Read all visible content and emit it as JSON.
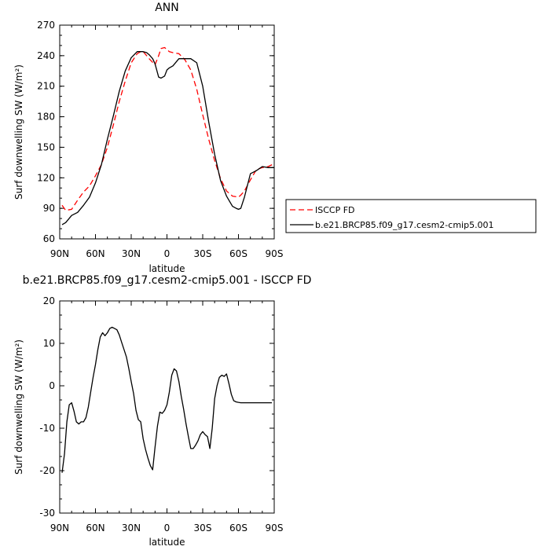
{
  "chart_data": [
    {
      "type": "line",
      "title": "ANN",
      "xlabel": "latitude",
      "ylabel": "Surf downwelling SW (W/m²)",
      "xlim": [
        90,
        -90
      ],
      "ylim": [
        60,
        270
      ],
      "xticks": [
        {
          "value": 90,
          "label": "90N"
        },
        {
          "value": 60,
          "label": "60N"
        },
        {
          "value": 30,
          "label": "30N"
        },
        {
          "value": 0,
          "label": "0"
        },
        {
          "value": -30,
          "label": "30S"
        },
        {
          "value": -60,
          "label": "60S"
        },
        {
          "value": -90,
          "label": "90S"
        }
      ],
      "yticks": [
        60,
        90,
        120,
        150,
        180,
        210,
        240,
        270
      ],
      "legend": {
        "position": "right",
        "entries": [
          {
            "label": "ISCCP FD",
            "color": "#ff0000",
            "dash": true
          },
          {
            "label": "b.e21.BRCP85.f09_g17.cesm2-cmip5.001",
            "color": "#000000",
            "dash": false
          }
        ]
      },
      "series": [
        {
          "name": "ISCCP FD",
          "color": "#ff0000",
          "dash": true,
          "x": [
            88,
            85,
            80,
            75,
            70,
            65,
            60,
            55,
            50,
            45,
            40,
            35,
            30,
            25,
            22,
            20,
            17,
            15,
            10,
            7,
            5,
            2,
            0,
            -2,
            -5,
            -10,
            -15,
            -20,
            -25,
            -30,
            -35,
            -40,
            -45,
            -50,
            -55,
            -60,
            -62,
            -65,
            -70,
            -75,
            -80,
            -85,
            -90
          ],
          "y": [
            93,
            88,
            89,
            98,
            106,
            112,
            122,
            133,
            150,
            172,
            195,
            215,
            233,
            242,
            244,
            244,
            240,
            237,
            231,
            240,
            247,
            248,
            246,
            244,
            243,
            242,
            236,
            226,
            207,
            182,
            158,
            137,
            119,
            107,
            102,
            101,
            103,
            107,
            118,
            128,
            130,
            131,
            134
          ]
        },
        {
          "name": "b.e21.BRCP85.f09_g17.cesm2-cmip5.001",
          "color": "#000000",
          "dash": false,
          "x": [
            88,
            85,
            80,
            75,
            70,
            65,
            60,
            55,
            50,
            45,
            40,
            35,
            30,
            25,
            22,
            20,
            17,
            15,
            12,
            10,
            7,
            5,
            2,
            0,
            -2,
            -5,
            -10,
            -15,
            -20,
            -25,
            -30,
            -35,
            -40,
            -45,
            -50,
            -55,
            -58,
            -60,
            -62,
            -65,
            -70,
            -75,
            -80,
            -85,
            -90
          ],
          "y": [
            74,
            76,
            83,
            86,
            93,
            101,
            115,
            133,
            158,
            181,
            205,
            225,
            238,
            244,
            244,
            244,
            243,
            241,
            237,
            232,
            219,
            218,
            220,
            226,
            228,
            230,
            237,
            237,
            237,
            233,
            210,
            175,
            143,
            117,
            102,
            92,
            90,
            89,
            90,
            101,
            124,
            127,
            131,
            130,
            130
          ]
        }
      ]
    },
    {
      "type": "line",
      "title": "b.e21.BRCP85.f09_g17.cesm2-cmip5.001 - ISCCP FD",
      "xlabel": "latitude",
      "ylabel": "Surf downwelling SW (W/m²)",
      "xlim": [
        90,
        -90
      ],
      "ylim": [
        -30,
        20
      ],
      "xticks": [
        {
          "value": 90,
          "label": "90N"
        },
        {
          "value": 60,
          "label": "60N"
        },
        {
          "value": 30,
          "label": "30N"
        },
        {
          "value": 0,
          "label": "0"
        },
        {
          "value": -30,
          "label": "30S"
        },
        {
          "value": -60,
          "label": "60S"
        },
        {
          "value": -90,
          "label": "90S"
        }
      ],
      "yticks": [
        -30,
        -20,
        -10,
        0,
        10,
        20
      ],
      "series": [
        {
          "color": "#000000",
          "dash": false,
          "x": [
            88,
            86,
            84,
            82,
            80,
            78,
            76,
            74,
            72,
            70,
            68,
            66,
            64,
            62,
            60,
            58,
            56,
            54,
            52,
            50,
            48,
            46,
            44,
            42,
            40,
            38,
            36,
            34,
            32,
            30,
            28,
            26,
            24,
            22,
            20,
            18,
            16,
            14,
            12,
            10,
            8,
            6,
            4,
            2,
            0,
            -2,
            -4,
            -6,
            -8,
            -10,
            -12,
            -14,
            -16,
            -18,
            -20,
            -22,
            -24,
            -26,
            -28,
            -30,
            -32,
            -34,
            -36,
            -38,
            -40,
            -42,
            -44,
            -46,
            -48,
            -50,
            -52,
            -54,
            -56,
            -58,
            -60,
            -62,
            -64,
            -66,
            -68,
            -70,
            -72,
            -74,
            -76,
            -78,
            -80,
            -82,
            -84,
            -86,
            -88
          ],
          "y": [
            -20.5,
            -16,
            -8.5,
            -4.5,
            -4,
            -6,
            -8.5,
            -9,
            -8.5,
            -8.5,
            -7.5,
            -5,
            -1.5,
            2,
            5,
            8.5,
            11.5,
            12.5,
            11.8,
            12.5,
            13.5,
            13.8,
            13.5,
            13.2,
            12,
            10.2,
            8.5,
            6.8,
            4,
            1,
            -1.8,
            -5.8,
            -8,
            -8.5,
            -12.5,
            -15,
            -17,
            -18.8,
            -19.8,
            -14.5,
            -9.5,
            -6.2,
            -6.5,
            -5.8,
            -4.5,
            -1.5,
            2.5,
            4,
            3.5,
            1,
            -2.5,
            -5.5,
            -9,
            -12,
            -14.8,
            -14.8,
            -14,
            -13,
            -11.5,
            -10.8,
            -11.5,
            -12,
            -14.8,
            -10,
            -3,
            0,
            2,
            2.5,
            2.2,
            2.8,
            0.5,
            -2,
            -3.5,
            -3.8,
            -3.9,
            -4,
            -4,
            -4,
            -4,
            -4,
            -4,
            -4,
            -4,
            -4,
            -4,
            -4,
            -4,
            -4,
            -4
          ]
        }
      ]
    }
  ]
}
